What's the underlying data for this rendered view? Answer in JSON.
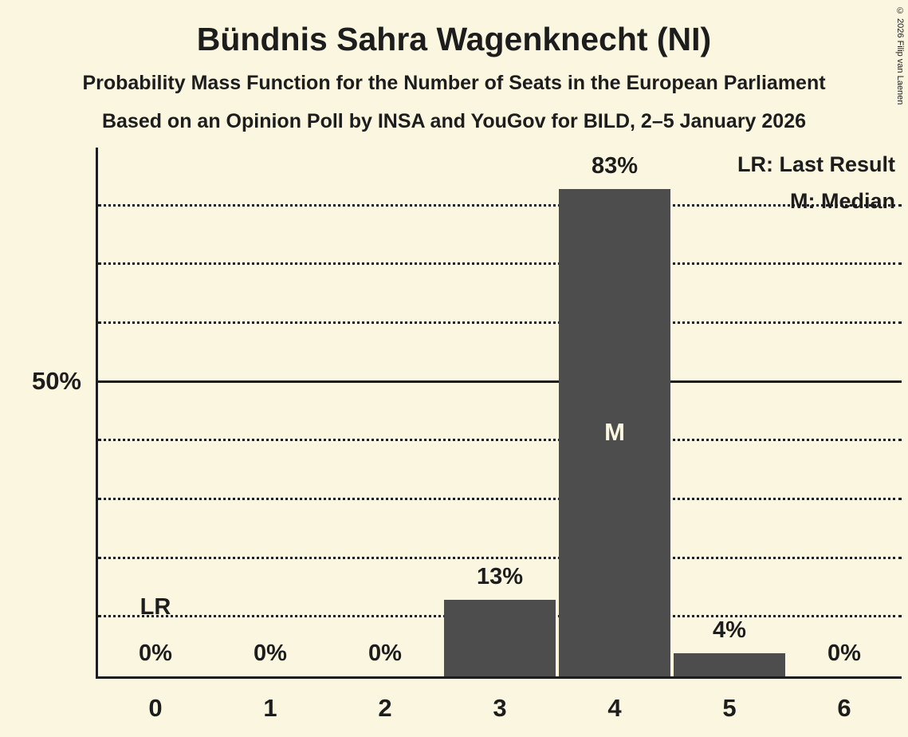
{
  "title": "Bündnis Sahra Wagenknecht (NI)",
  "subtitle1": "Probability Mass Function for the Number of Seats in the European Parliament",
  "subtitle2": "Based on an Opinion Poll by INSA and YouGov for BILD, 2–5 January 2026",
  "copyright": "© 2026 Filip van Laenen",
  "legend": {
    "lr": "LR: Last Result",
    "m": "M: Median"
  },
  "y_axis": {
    "label_50": "50%"
  },
  "colors": {
    "background": "#FBF6DF",
    "bar": "#4D4D4D",
    "text": "#1D1D1D",
    "median_text": "#FBF6DF"
  },
  "chart_data": {
    "type": "bar",
    "title": "Bündnis Sahra Wagenknecht (NI) — Probability Mass Function for the Number of Seats in the European Parliament",
    "categories": [
      "0",
      "1",
      "2",
      "3",
      "4",
      "5",
      "6"
    ],
    "values": [
      0,
      0,
      0,
      13,
      83,
      4,
      0
    ],
    "value_labels": [
      "0%",
      "0%",
      "0%",
      "13%",
      "83%",
      "4%",
      "0%"
    ],
    "xlabel": "",
    "ylabel": "",
    "ylim": [
      0,
      90
    ],
    "grid": "horizontal-dotted",
    "gridlines_dotted": [
      10,
      20,
      30,
      40,
      60,
      70,
      80
    ],
    "gridline_solid": 50,
    "median_category": "4",
    "median_label": "M",
    "last_result_category": "0",
    "last_result_label": "LR",
    "legend_position": "top-right"
  }
}
